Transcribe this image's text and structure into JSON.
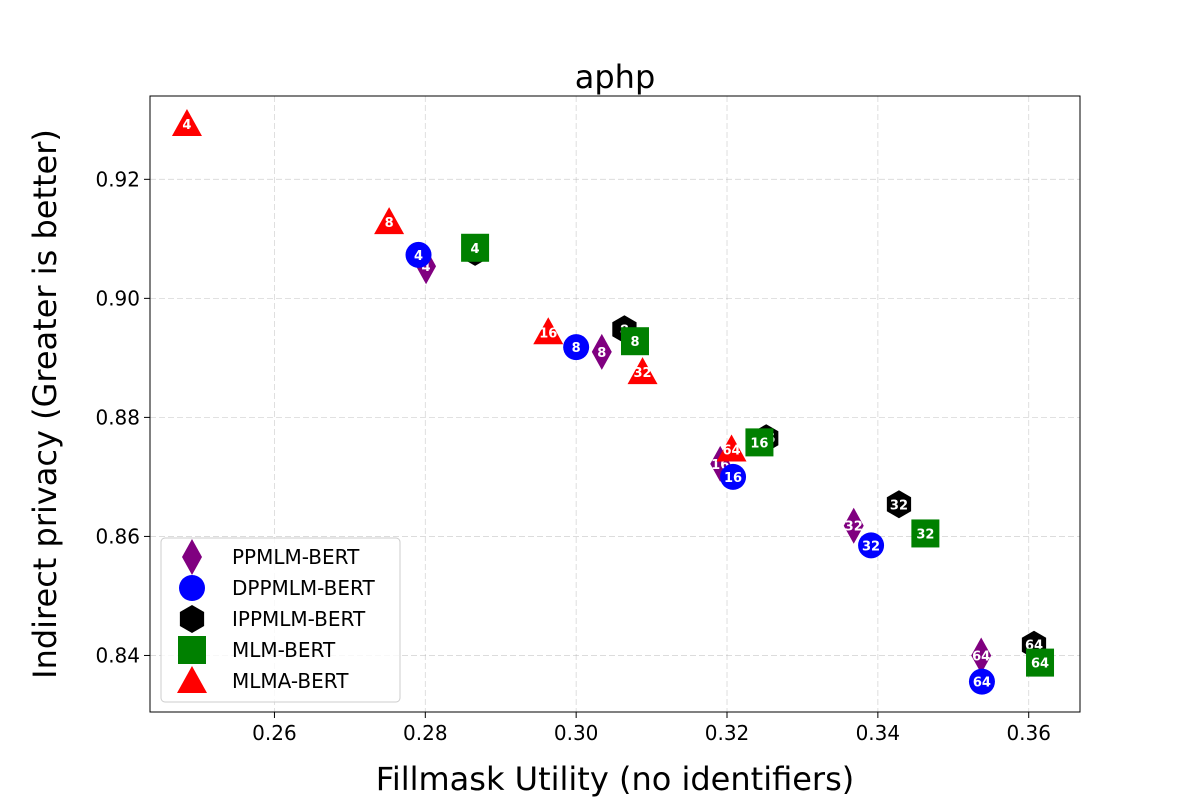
{
  "chart_data": {
    "type": "scatter",
    "title": "aphp",
    "xlabel": "Fillmask Utility (no identifiers)",
    "ylabel": "Indirect privacy (Greater is better)",
    "xlim": [
      0.2435,
      0.3668
    ],
    "ylim": [
      0.8305,
      0.934
    ],
    "xticks": [
      "0.26",
      "0.28",
      "0.30",
      "0.32",
      "0.34",
      "0.36"
    ],
    "xtick_values": [
      0.26,
      0.28,
      0.3,
      0.32,
      0.34,
      0.36
    ],
    "yticks": [
      "0.84",
      "0.86",
      "0.88",
      "0.90",
      "0.92"
    ],
    "ytick_values": [
      0.84,
      0.86,
      0.88,
      0.9,
      0.92
    ],
    "grid": true,
    "legend_position": "lower-left",
    "series": [
      {
        "name": "PPMLM-BERT",
        "marker": "diamond",
        "color": "#800080",
        "points": [
          {
            "x": 0.2801,
            "y": 0.9054,
            "label": "4"
          },
          {
            "x": 0.3034,
            "y": 0.891,
            "label": "8"
          },
          {
            "x": 0.3191,
            "y": 0.8722,
            "label": "16"
          },
          {
            "x": 0.3368,
            "y": 0.8618,
            "label": "32"
          },
          {
            "x": 0.3537,
            "y": 0.84,
            "label": "64"
          }
        ]
      },
      {
        "name": "DPPMLM-BERT",
        "marker": "circle",
        "color": "#0000ff",
        "points": [
          {
            "x": 0.2791,
            "y": 0.9073,
            "label": "4"
          },
          {
            "x": 0.3,
            "y": 0.8918,
            "label": "8"
          },
          {
            "x": 0.3208,
            "y": 0.87,
            "label": "16"
          },
          {
            "x": 0.3391,
            "y": 0.8585,
            "label": "32"
          },
          {
            "x": 0.3538,
            "y": 0.8356,
            "label": "64"
          }
        ]
      },
      {
        "name": "IPPMLM-BERT",
        "marker": "hexagon",
        "color": "#000000",
        "points": [
          {
            "x": 0.2866,
            "y": 0.9078,
            "label": "4"
          },
          {
            "x": 0.3064,
            "y": 0.8948,
            "label": "8"
          },
          {
            "x": 0.3252,
            "y": 0.8765,
            "label": "16"
          },
          {
            "x": 0.3428,
            "y": 0.8654,
            "label": "32"
          },
          {
            "x": 0.3607,
            "y": 0.8418,
            "label": "64"
          }
        ]
      },
      {
        "name": "MLM-BERT",
        "marker": "square",
        "color": "#008000",
        "points": [
          {
            "x": 0.2866,
            "y": 0.9085,
            "label": "4"
          },
          {
            "x": 0.3078,
            "y": 0.8928,
            "label": "8"
          },
          {
            "x": 0.3243,
            "y": 0.8758,
            "label": "16"
          },
          {
            "x": 0.3463,
            "y": 0.8605,
            "label": "32"
          },
          {
            "x": 0.3615,
            "y": 0.8388,
            "label": "64"
          }
        ]
      },
      {
        "name": "MLMA-BERT",
        "marker": "triangle",
        "color": "#ff0000",
        "points": [
          {
            "x": 0.2484,
            "y": 0.9293,
            "label": "4"
          },
          {
            "x": 0.2752,
            "y": 0.9128,
            "label": "8"
          },
          {
            "x": 0.2963,
            "y": 0.8943,
            "label": "16"
          },
          {
            "x": 0.3088,
            "y": 0.8876,
            "label": "32"
          },
          {
            "x": 0.3206,
            "y": 0.8746,
            "label": "64"
          }
        ]
      }
    ]
  }
}
